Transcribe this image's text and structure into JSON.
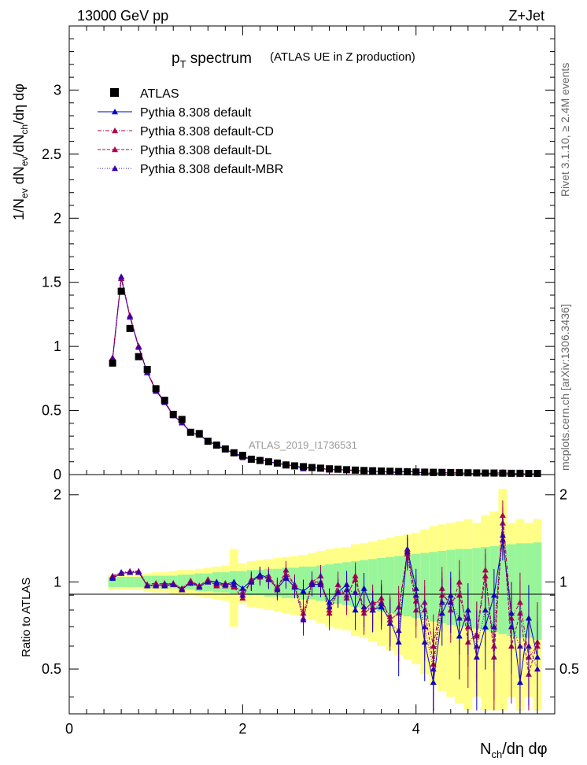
{
  "header": {
    "left": "13000 GeV pp",
    "right": "Z+Jet"
  },
  "title": {
    "main_p": "p",
    "main_sub": "T",
    "main_rest": " spectrum",
    "sub": "(ATLAS UE in Z production)"
  },
  "watermark": "ATLAS_2019_I1736531",
  "side_label_top": "Rivet 3.1.10, ≥ 2.4M events",
  "side_label_bottom": "mcplots.cern.ch [arXiv:1306.3436]",
  "axis_labels": {
    "upper_y": "1/N_ev dN_ev/dN_ch/dη dφ",
    "lower_y": "Ratio to ATLAS",
    "x": "N_ch/dη dφ"
  },
  "legend": [
    {
      "label": "ATLAS",
      "color": "#000000",
      "marker": "square",
      "line": "none"
    },
    {
      "label": "Pythia 8.308 default",
      "color": "#0000cc",
      "marker": "triangle",
      "line": "solid"
    },
    {
      "label": "Pythia 8.308 default-CD",
      "color": "#aa0055",
      "marker": "triangle",
      "line": "dashdot"
    },
    {
      "label": "Pythia 8.308 default-DL",
      "color": "#aa0055",
      "marker": "triangle",
      "line": "dashed"
    },
    {
      "label": "Pythia 8.308 default-MBR",
      "color": "#3300aa",
      "marker": "triangle",
      "line": "dotted"
    }
  ],
  "chart_data": {
    "type": "scatter",
    "x_ticks": [
      "0",
      "2",
      "4"
    ],
    "upper_y_ticks": [
      "0",
      "0.5",
      "1",
      "1.5",
      "2",
      "2.5",
      "3"
    ],
    "lower_y_ticks": [
      "0.5",
      "1",
      "2"
    ],
    "xlim": [
      0,
      5.6
    ],
    "upper_ylim": [
      0,
      3.5
    ],
    "lower_ylim": [
      0.35,
      2.35
    ],
    "lower_yscale": "log",
    "bin_width": 0.1,
    "x": [
      0.5,
      0.6,
      0.7,
      0.8,
      0.9,
      1.0,
      1.1,
      1.2,
      1.3,
      1.4,
      1.5,
      1.6,
      1.7,
      1.8,
      1.9,
      2.0,
      2.1,
      2.2,
      2.3,
      2.4,
      2.5,
      2.6,
      2.7,
      2.8,
      2.9,
      3.0,
      3.1,
      3.2,
      3.3,
      3.4,
      3.5,
      3.6,
      3.7,
      3.8,
      3.9,
      4.0,
      4.1,
      4.2,
      4.3,
      4.4,
      4.5,
      4.6,
      4.7,
      4.8,
      4.9,
      5.0,
      5.1,
      5.2,
      5.3,
      5.4
    ],
    "atlas": [
      0.87,
      1.43,
      1.14,
      0.92,
      0.82,
      0.67,
      0.58,
      0.47,
      0.43,
      0.33,
      0.32,
      0.26,
      0.23,
      0.2,
      0.17,
      0.15,
      0.12,
      0.11,
      0.1,
      0.09,
      0.075,
      0.068,
      0.062,
      0.055,
      0.05,
      0.045,
      0.042,
      0.038,
      0.035,
      0.032,
      0.03,
      0.028,
      0.026,
      0.024,
      0.022,
      0.02,
      0.019,
      0.018,
      0.017,
      0.016,
      0.015,
      0.014,
      0.013,
      0.012,
      0.012,
      0.011,
      0.01,
      0.01,
      0.009,
      0.009
    ],
    "band_inner": [
      0.04,
      0.04,
      0.04,
      0.04,
      0.05,
      0.05,
      0.05,
      0.05,
      0.06,
      0.06,
      0.07,
      0.07,
      0.08,
      0.08,
      0.09,
      0.09,
      0.1,
      0.1,
      0.11,
      0.11,
      0.12,
      0.12,
      0.13,
      0.13,
      0.14,
      0.15,
      0.16,
      0.17,
      0.18,
      0.19,
      0.2,
      0.21,
      0.22,
      0.23,
      0.24,
      0.25,
      0.26,
      0.27,
      0.28,
      0.29,
      0.3,
      0.3,
      0.31,
      0.32,
      0.33,
      0.34,
      0.35,
      0.36,
      0.36,
      0.37
    ],
    "band_outer": [
      0.06,
      0.06,
      0.06,
      0.06,
      0.07,
      0.08,
      0.08,
      0.09,
      0.1,
      0.1,
      0.11,
      0.12,
      0.13,
      0.14,
      0.3,
      0.16,
      0.18,
      0.19,
      0.2,
      0.21,
      0.22,
      0.23,
      0.24,
      0.26,
      0.28,
      0.3,
      0.31,
      0.32,
      0.35,
      0.36,
      0.38,
      0.4,
      0.42,
      0.44,
      0.46,
      0.48,
      0.52,
      0.56,
      0.58,
      0.6,
      0.62,
      0.65,
      0.6,
      0.7,
      0.75,
      1.1,
      0.6,
      0.65,
      0.6,
      0.65
    ],
    "series": [
      {
        "name": "Pythia 8.308 default",
        "ratio": [
          1.03,
          1.07,
          1.08,
          1.08,
          0.97,
          0.98,
          0.97,
          0.98,
          0.94,
          1.0,
          0.96,
          1.01,
          1.0,
          0.98,
          1.0,
          0.95,
          1.01,
          1.06,
          1.03,
          0.95,
          1.03,
          0.96,
          0.93,
          0.98,
          0.98,
          0.85,
          0.92,
          0.98,
          0.8,
          0.95,
          0.8,
          0.82,
          0.74,
          0.62,
          1.3,
          0.95,
          0.62,
          0.45,
          0.78,
          0.9,
          0.65,
          0.8,
          0.55,
          0.7,
          0.9,
          1.4,
          0.78,
          0.45,
          0.75,
          0.55
        ]
      },
      {
        "name": "Pythia 8.308 default-CD",
        "ratio": [
          1.05,
          1.08,
          1.09,
          1.09,
          0.98,
          0.99,
          0.98,
          0.99,
          0.95,
          1.01,
          0.97,
          1.02,
          0.97,
          0.99,
          0.97,
          0.92,
          1.0,
          1.05,
          1.05,
          0.96,
          1.06,
          0.98,
          0.78,
          1.0,
          1.0,
          0.8,
          0.98,
          0.88,
          1.05,
          0.8,
          0.85,
          0.85,
          0.76,
          0.82,
          1.25,
          0.8,
          0.85,
          0.6,
          0.9,
          0.85,
          0.9,
          0.7,
          0.65,
          1.05,
          0.6,
          1.7,
          0.75,
          0.85,
          0.55,
          0.6
        ]
      },
      {
        "name": "Pythia 8.308 default-DL",
        "ratio": [
          1.04,
          1.07,
          1.08,
          1.09,
          0.97,
          0.98,
          0.99,
          0.98,
          0.95,
          1.0,
          0.97,
          1.0,
          0.98,
          0.97,
          0.96,
          0.88,
          1.02,
          1.04,
          1.03,
          0.95,
          1.1,
          0.97,
          0.75,
          1.0,
          1.05,
          0.78,
          0.93,
          0.9,
          1.02,
          0.78,
          0.82,
          0.88,
          0.74,
          0.78,
          1.28,
          0.86,
          0.8,
          0.52,
          0.95,
          0.8,
          1.0,
          0.62,
          0.66,
          1.1,
          0.55,
          1.6,
          0.6,
          0.78,
          0.48,
          0.62
        ]
      },
      {
        "name": "Pythia 8.308 default-MBR",
        "ratio": [
          1.04,
          1.08,
          1.08,
          1.08,
          0.97,
          0.97,
          0.98,
          0.98,
          0.94,
          0.99,
          0.96,
          1.0,
          0.99,
          0.98,
          0.98,
          0.9,
          1.0,
          1.05,
          1.02,
          0.94,
          1.04,
          0.96,
          0.74,
          0.99,
          0.99,
          0.82,
          0.92,
          0.94,
          0.92,
          0.82,
          0.8,
          0.84,
          0.72,
          0.68,
          1.27,
          0.9,
          0.7,
          0.5,
          0.85,
          0.85,
          0.75,
          0.75,
          0.6,
          0.8,
          0.7,
          1.45,
          0.7,
          0.6,
          0.6,
          0.5
        ]
      }
    ]
  }
}
